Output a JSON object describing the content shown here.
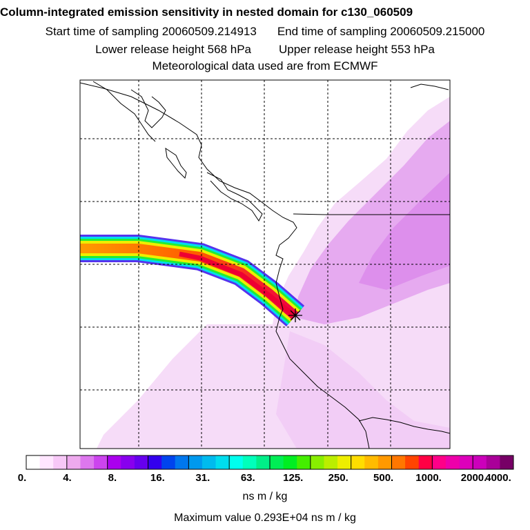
{
  "header": {
    "title": "Column-integrated emission sensitivity in nested domain for c130_060509",
    "start_label": "Start time of sampling 20060509.214913",
    "end_label": "End time of sampling 20060509.215000",
    "lower_label": "Lower release height  568 hPa",
    "upper_label": "Upper release height  553 hPa",
    "met_label": "Meteorological data used are from ECMWF"
  },
  "colorbar": {
    "colors": [
      "#ffffff",
      "#ffe6ff",
      "#f7c8f7",
      "#eeaaee",
      "#dd77ee",
      "#cc44ee",
      "#aa00ee",
      "#8800ee",
      "#6600ee",
      "#3300ee",
      "#0044ee",
      "#0077ee",
      "#0099ee",
      "#00bbee",
      "#00ddee",
      "#00ffee",
      "#00ffbb",
      "#00ee88",
      "#00ee55",
      "#00ee22",
      "#44ee00",
      "#88ee00",
      "#bbee00",
      "#eeee00",
      "#ffdd00",
      "#ffbb00",
      "#ff9900",
      "#ff7700",
      "#ff4400",
      "#ff0044",
      "#ff0088",
      "#ee00aa",
      "#dd00bb",
      "#cc00bb",
      "#aa0099",
      "#770066"
    ],
    "tick_labels": [
      "0.",
      "4.",
      "8.",
      "16.",
      "31.",
      "63.",
      "125.",
      "250.",
      "500.",
      "1000.",
      "2000.",
      "4000."
    ]
  },
  "units": "ns m / kg",
  "max_value": "Maximum value  0.293E+04 ns m / kg",
  "colors": {
    "plume_low": "#f1c6f4",
    "plume_mid": "#dc88ea",
    "coast": "#000000",
    "grid": "#000000",
    "receptor_marker": "#000000"
  }
}
